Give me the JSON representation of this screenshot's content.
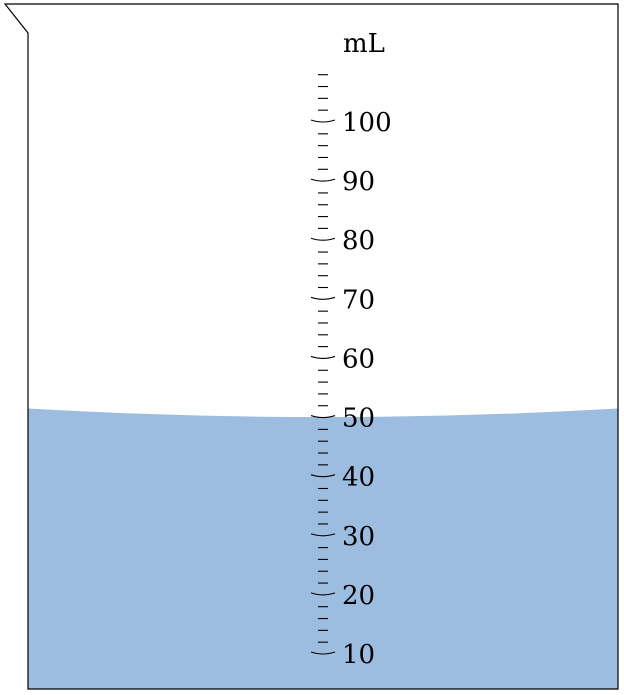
{
  "figure": {
    "unit": "mL",
    "liquid_level_ml": 50,
    "scale": {
      "min_ml": 10,
      "max_ml": 108,
      "minor_step_ml": 2,
      "major_step_ml": 10,
      "labels": [
        "10",
        "20",
        "30",
        "40",
        "50",
        "60",
        "70",
        "80",
        "90",
        "100"
      ]
    },
    "colors": {
      "liquid": "#9dbde0",
      "outline": "#000000",
      "background": "#ffffff"
    }
  }
}
